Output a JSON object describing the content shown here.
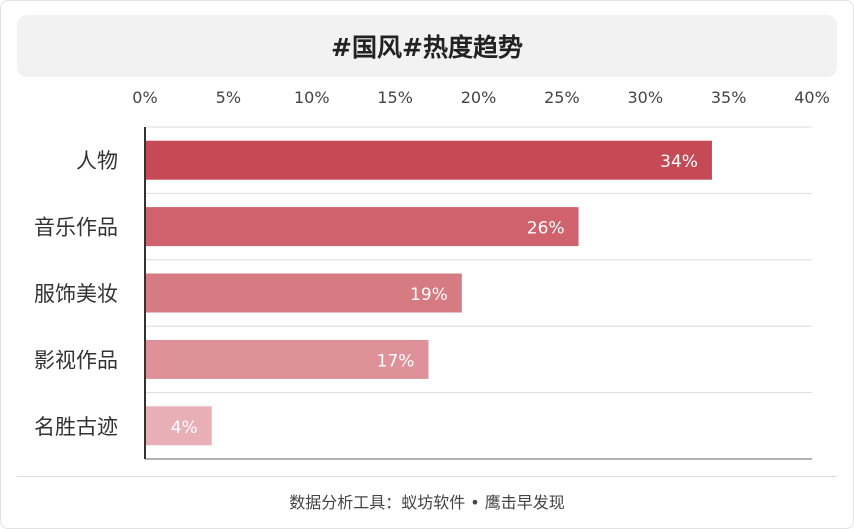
{
  "chart_data": {
    "type": "bar",
    "orientation": "horizontal",
    "title": "#国风#热度趋势",
    "categories": [
      "人物",
      "音乐作品",
      "服饰美妆",
      "影视作品",
      "名胜古迹"
    ],
    "values": [
      34,
      26,
      19,
      17,
      4
    ],
    "data_labels": [
      "34%",
      "26%",
      "19%",
      "17%",
      "4%"
    ],
    "xlim": [
      0,
      40
    ],
    "x_ticks": [
      0,
      5,
      10,
      15,
      20,
      25,
      30,
      35,
      40
    ],
    "x_tick_labels": [
      "0%",
      "5%",
      "10%",
      "15%",
      "20%",
      "25%",
      "30%",
      "35%",
      "40%"
    ],
    "x_axis_position": "top",
    "grid": "horizontal separators",
    "bar_colors": [
      "#c64a55",
      "#cf626c",
      "#d77b83",
      "#df9199",
      "#e8b0b6"
    ],
    "label_color": "#ffffff",
    "legend": "none"
  },
  "source": "数据分析工具：蚁坊软件 • 鹰击早发现"
}
